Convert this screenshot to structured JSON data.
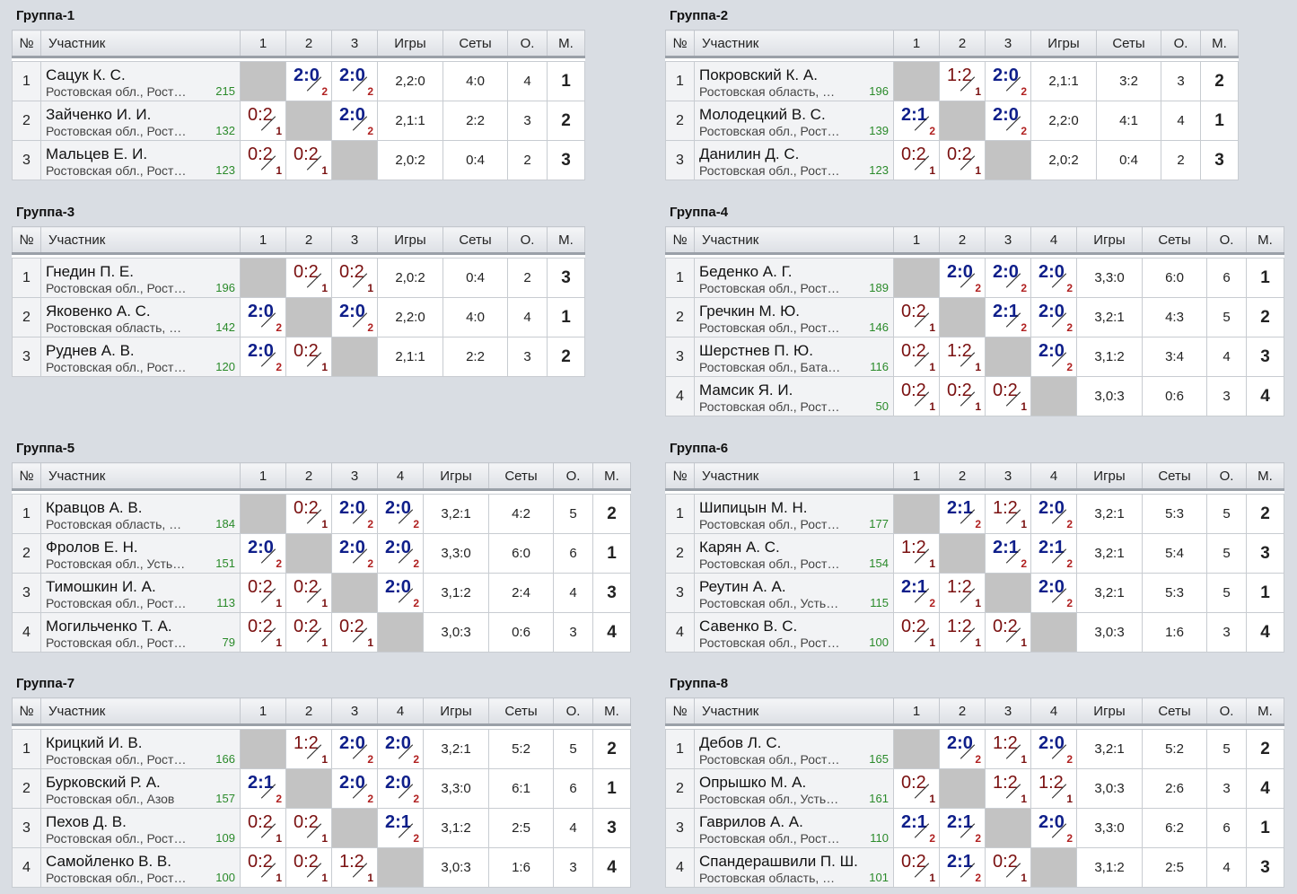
{
  "headers": {
    "num": "№",
    "participant": "Участник",
    "games": "Игры",
    "sets": "Сеты",
    "points": "О.",
    "place": "М."
  },
  "groups": [
    {
      "title": "Группа-1",
      "players": [
        {
          "num": "1",
          "name": "Сацук К. С.",
          "region": "Ростовская обл., Рост…",
          "rating": "215",
          "results": [
            null,
            {
              "s": "2:0",
              "p": "2",
              "w": true
            },
            {
              "s": "2:0",
              "p": "2",
              "w": true
            }
          ],
          "games": "2,2:0",
          "sets": "4:0",
          "points": "4",
          "place": "1"
        },
        {
          "num": "2",
          "name": "Зайченко И. И.",
          "region": "Ростовская обл., Рост…",
          "rating": "132",
          "results": [
            {
              "s": "0:2",
              "p": "1",
              "w": false
            },
            null,
            {
              "s": "2:0",
              "p": "2",
              "w": true
            }
          ],
          "games": "2,1:1",
          "sets": "2:2",
          "points": "3",
          "place": "2"
        },
        {
          "num": "3",
          "name": "Мальцев Е. И.",
          "region": "Ростовская обл., Рост…",
          "rating": "123",
          "results": [
            {
              "s": "0:2",
              "p": "1",
              "w": false
            },
            {
              "s": "0:2",
              "p": "1",
              "w": false
            },
            null
          ],
          "games": "2,0:2",
          "sets": "0:4",
          "points": "2",
          "place": "3"
        }
      ]
    },
    {
      "title": "Группа-2",
      "players": [
        {
          "num": "1",
          "name": "Покровский К. А.",
          "region": "Ростовская область, …",
          "rating": "196",
          "results": [
            null,
            {
              "s": "1:2",
              "p": "1",
              "w": false
            },
            {
              "s": "2:0",
              "p": "2",
              "w": true
            }
          ],
          "games": "2,1:1",
          "sets": "3:2",
          "points": "3",
          "place": "2"
        },
        {
          "num": "2",
          "name": "Молодецкий В. С.",
          "region": "Ростовская обл., Рост…",
          "rating": "139",
          "results": [
            {
              "s": "2:1",
              "p": "2",
              "w": true
            },
            null,
            {
              "s": "2:0",
              "p": "2",
              "w": true
            }
          ],
          "games": "2,2:0",
          "sets": "4:1",
          "points": "4",
          "place": "1"
        },
        {
          "num": "3",
          "name": "Данилин Д. С.",
          "region": "Ростовская обл., Рост…",
          "rating": "123",
          "results": [
            {
              "s": "0:2",
              "p": "1",
              "w": false
            },
            {
              "s": "0:2",
              "p": "1",
              "w": false
            },
            null
          ],
          "games": "2,0:2",
          "sets": "0:4",
          "points": "2",
          "place": "3"
        }
      ]
    },
    {
      "title": "Группа-3",
      "players": [
        {
          "num": "1",
          "name": "Гнедин П. Е.",
          "region": "Ростовская обл., Рост…",
          "rating": "196",
          "results": [
            null,
            {
              "s": "0:2",
              "p": "1",
              "w": false
            },
            {
              "s": "0:2",
              "p": "1",
              "w": false
            }
          ],
          "games": "2,0:2",
          "sets": "0:4",
          "points": "2",
          "place": "3"
        },
        {
          "num": "2",
          "name": "Яковенко А. С.",
          "region": "Ростовская область, …",
          "rating": "142",
          "results": [
            {
              "s": "2:0",
              "p": "2",
              "w": true
            },
            null,
            {
              "s": "2:0",
              "p": "2",
              "w": true
            }
          ],
          "games": "2,2:0",
          "sets": "4:0",
          "points": "4",
          "place": "1"
        },
        {
          "num": "3",
          "name": "Руднев А. В.",
          "region": "Ростовская обл., Рост…",
          "rating": "120",
          "results": [
            {
              "s": "2:0",
              "p": "2",
              "w": true
            },
            {
              "s": "0:2",
              "p": "1",
              "w": false
            },
            null
          ],
          "games": "2,1:1",
          "sets": "2:2",
          "points": "3",
          "place": "2"
        }
      ]
    },
    {
      "title": "Группа-4",
      "players": [
        {
          "num": "1",
          "name": "Беденко А. Г.",
          "region": "Ростовская обл., Рост…",
          "rating": "189",
          "results": [
            null,
            {
              "s": "2:0",
              "p": "2",
              "w": true
            },
            {
              "s": "2:0",
              "p": "2",
              "w": true
            },
            {
              "s": "2:0",
              "p": "2",
              "w": true
            }
          ],
          "games": "3,3:0",
          "sets": "6:0",
          "points": "6",
          "place": "1"
        },
        {
          "num": "2",
          "name": "Гречкин М. Ю.",
          "region": "Ростовская обл., Рост…",
          "rating": "146",
          "results": [
            {
              "s": "0:2",
              "p": "1",
              "w": false
            },
            null,
            {
              "s": "2:1",
              "p": "2",
              "w": true
            },
            {
              "s": "2:0",
              "p": "2",
              "w": true
            }
          ],
          "games": "3,2:1",
          "sets": "4:3",
          "points": "5",
          "place": "2"
        },
        {
          "num": "3",
          "name": "Шерстнев П. Ю.",
          "region": "Ростовская обл., Бата…",
          "rating": "116",
          "results": [
            {
              "s": "0:2",
              "p": "1",
              "w": false
            },
            {
              "s": "1:2",
              "p": "1",
              "w": false
            },
            null,
            {
              "s": "2:0",
              "p": "2",
              "w": true
            }
          ],
          "games": "3,1:2",
          "sets": "3:4",
          "points": "4",
          "place": "3"
        },
        {
          "num": "4",
          "name": "Мамсик Я. И.",
          "region": "Ростовская обл., Рост…",
          "rating": "50",
          "results": [
            {
              "s": "0:2",
              "p": "1",
              "w": false
            },
            {
              "s": "0:2",
              "p": "1",
              "w": false
            },
            {
              "s": "0:2",
              "p": "1",
              "w": false
            },
            null
          ],
          "games": "3,0:3",
          "sets": "0:6",
          "points": "3",
          "place": "4"
        }
      ]
    },
    {
      "title": "Группа-5",
      "players": [
        {
          "num": "1",
          "name": "Кравцов А. В.",
          "region": "Ростовская область, …",
          "rating": "184",
          "results": [
            null,
            {
              "s": "0:2",
              "p": "1",
              "w": false
            },
            {
              "s": "2:0",
              "p": "2",
              "w": true
            },
            {
              "s": "2:0",
              "p": "2",
              "w": true
            }
          ],
          "games": "3,2:1",
          "sets": "4:2",
          "points": "5",
          "place": "2"
        },
        {
          "num": "2",
          "name": "Фролов Е. Н.",
          "region": "Ростовская обл., Усть…",
          "rating": "151",
          "results": [
            {
              "s": "2:0",
              "p": "2",
              "w": true
            },
            null,
            {
              "s": "2:0",
              "p": "2",
              "w": true
            },
            {
              "s": "2:0",
              "p": "2",
              "w": true
            }
          ],
          "games": "3,3:0",
          "sets": "6:0",
          "points": "6",
          "place": "1"
        },
        {
          "num": "3",
          "name": "Тимошкин И. А.",
          "region": "Ростовская обл., Рост…",
          "rating": "113",
          "results": [
            {
              "s": "0:2",
              "p": "1",
              "w": false
            },
            {
              "s": "0:2",
              "p": "1",
              "w": false
            },
            null,
            {
              "s": "2:0",
              "p": "2",
              "w": true
            }
          ],
          "games": "3,1:2",
          "sets": "2:4",
          "points": "4",
          "place": "3"
        },
        {
          "num": "4",
          "name": "Могильченко Т. А.",
          "region": "Ростовская обл., Рост…",
          "rating": "79",
          "results": [
            {
              "s": "0:2",
              "p": "1",
              "w": false
            },
            {
              "s": "0:2",
              "p": "1",
              "w": false
            },
            {
              "s": "0:2",
              "p": "1",
              "w": false
            },
            null
          ],
          "games": "3,0:3",
          "sets": "0:6",
          "points": "3",
          "place": "4"
        }
      ]
    },
    {
      "title": "Группа-6",
      "players": [
        {
          "num": "1",
          "name": "Шипицын М. Н.",
          "region": "Ростовская обл., Рост…",
          "rating": "177",
          "results": [
            null,
            {
              "s": "2:1",
              "p": "2",
              "w": true
            },
            {
              "s": "1:2",
              "p": "1",
              "w": false
            },
            {
              "s": "2:0",
              "p": "2",
              "w": true
            }
          ],
          "games": "3,2:1",
          "sets": "5:3",
          "points": "5",
          "place": "2"
        },
        {
          "num": "2",
          "name": "Карян А. С.",
          "region": "Ростовская обл., Рост…",
          "rating": "154",
          "results": [
            {
              "s": "1:2",
              "p": "1",
              "w": false
            },
            null,
            {
              "s": "2:1",
              "p": "2",
              "w": true
            },
            {
              "s": "2:1",
              "p": "2",
              "w": true
            }
          ],
          "games": "3,2:1",
          "sets": "5:4",
          "points": "5",
          "place": "3"
        },
        {
          "num": "3",
          "name": "Реутин А. А.",
          "region": "Ростовская обл., Усть…",
          "rating": "115",
          "results": [
            {
              "s": "2:1",
              "p": "2",
              "w": true
            },
            {
              "s": "1:2",
              "p": "1",
              "w": false
            },
            null,
            {
              "s": "2:0",
              "p": "2",
              "w": true
            }
          ],
          "games": "3,2:1",
          "sets": "5:3",
          "points": "5",
          "place": "1"
        },
        {
          "num": "4",
          "name": "Савенко В. С.",
          "region": "Ростовская обл., Рост…",
          "rating": "100",
          "results": [
            {
              "s": "0:2",
              "p": "1",
              "w": false
            },
            {
              "s": "1:2",
              "p": "1",
              "w": false
            },
            {
              "s": "0:2",
              "p": "1",
              "w": false
            },
            null
          ],
          "games": "3,0:3",
          "sets": "1:6",
          "points": "3",
          "place": "4"
        }
      ]
    },
    {
      "title": "Группа-7",
      "players": [
        {
          "num": "1",
          "name": "Крицкий И. В.",
          "region": "Ростовская обл., Рост…",
          "rating": "166",
          "results": [
            null,
            {
              "s": "1:2",
              "p": "1",
              "w": false
            },
            {
              "s": "2:0",
              "p": "2",
              "w": true
            },
            {
              "s": "2:0",
              "p": "2",
              "w": true
            }
          ],
          "games": "3,2:1",
          "sets": "5:2",
          "points": "5",
          "place": "2"
        },
        {
          "num": "2",
          "name": "Бурковский Р. А.",
          "region": "Ростовская обл., Азов",
          "rating": "157",
          "results": [
            {
              "s": "2:1",
              "p": "2",
              "w": true
            },
            null,
            {
              "s": "2:0",
              "p": "2",
              "w": true
            },
            {
              "s": "2:0",
              "p": "2",
              "w": true
            }
          ],
          "games": "3,3:0",
          "sets": "6:1",
          "points": "6",
          "place": "1"
        },
        {
          "num": "3",
          "name": "Пехов Д. В.",
          "region": "Ростовская обл., Рост…",
          "rating": "109",
          "results": [
            {
              "s": "0:2",
              "p": "1",
              "w": false
            },
            {
              "s": "0:2",
              "p": "1",
              "w": false
            },
            null,
            {
              "s": "2:1",
              "p": "2",
              "w": true
            }
          ],
          "games": "3,1:2",
          "sets": "2:5",
          "points": "4",
          "place": "3"
        },
        {
          "num": "4",
          "name": "Самойленко В. В.",
          "region": "Ростовская обл., Рост…",
          "rating": "100",
          "results": [
            {
              "s": "0:2",
              "p": "1",
              "w": false
            },
            {
              "s": "0:2",
              "p": "1",
              "w": false
            },
            {
              "s": "1:2",
              "p": "1",
              "w": false
            },
            null
          ],
          "games": "3,0:3",
          "sets": "1:6",
          "points": "3",
          "place": "4"
        }
      ]
    },
    {
      "title": "Группа-8",
      "players": [
        {
          "num": "1",
          "name": "Дебов Л. С.",
          "region": "Ростовская обл., Рост…",
          "rating": "165",
          "results": [
            null,
            {
              "s": "2:0",
              "p": "2",
              "w": true
            },
            {
              "s": "1:2",
              "p": "1",
              "w": false
            },
            {
              "s": "2:0",
              "p": "2",
              "w": true
            }
          ],
          "games": "3,2:1",
          "sets": "5:2",
          "points": "5",
          "place": "2"
        },
        {
          "num": "2",
          "name": "Опрышко М. А.",
          "region": "Ростовская обл., Усть…",
          "rating": "161",
          "results": [
            {
              "s": "0:2",
              "p": "1",
              "w": false
            },
            null,
            {
              "s": "1:2",
              "p": "1",
              "w": false
            },
            {
              "s": "1:2",
              "p": "1",
              "w": false
            }
          ],
          "games": "3,0:3",
          "sets": "2:6",
          "points": "3",
          "place": "4"
        },
        {
          "num": "3",
          "name": "Гаврилов А. А.",
          "region": "Ростовская обл., Рост…",
          "rating": "110",
          "results": [
            {
              "s": "2:1",
              "p": "2",
              "w": true
            },
            {
              "s": "2:1",
              "p": "2",
              "w": true
            },
            null,
            {
              "s": "2:0",
              "p": "2",
              "w": true
            }
          ],
          "games": "3,3:0",
          "sets": "6:2",
          "points": "6",
          "place": "1"
        },
        {
          "num": "4",
          "name": "Спандерашвили П. Ш.",
          "region": "Ростовская область, …",
          "rating": "101",
          "results": [
            {
              "s": "0:2",
              "p": "1",
              "w": false
            },
            {
              "s": "2:1",
              "p": "2",
              "w": true
            },
            {
              "s": "0:2",
              "p": "1",
              "w": false
            },
            null
          ],
          "games": "3,1:2",
          "sets": "2:5",
          "points": "4",
          "place": "3"
        }
      ]
    }
  ]
}
